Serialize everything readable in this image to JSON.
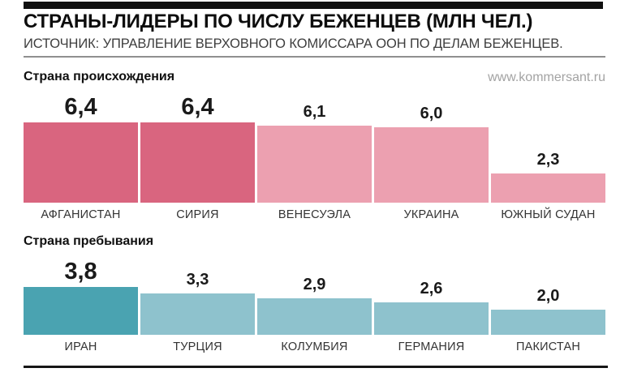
{
  "header": {
    "title": "СТРАНЫ-ЛИДЕРЫ ПО ЧИСЛУ БЕЖЕНЦЕВ (МЛН ЧЕЛ.)",
    "source": "ИСТОЧНИК: УПРАВЛЕНИЕ ВЕРХОВНОГО КОМИССАРА ООН ПО ДЕЛАМ БЕЖЕНЦЕВ.",
    "website": "www.kommersant.ru"
  },
  "chart_data": [
    {
      "type": "bar",
      "title": "Страна происхождения",
      "units": "млн чел.",
      "categories": [
        "АФГАНИСТАН",
        "СИРИЯ",
        "ВЕНЕСУЭЛА",
        "УКРАИНА",
        "ЮЖНЫЙ СУДАН"
      ],
      "values": [
        6.4,
        6.4,
        6.1,
        6.0,
        2.3
      ],
      "value_labels": [
        "6,4",
        "6,4",
        "6,1",
        "6,0",
        "2,3"
      ],
      "emphasis": [
        true,
        true,
        false,
        false,
        false
      ],
      "colors": {
        "emphasis": "#d9657f",
        "normal": "#eca0b0"
      },
      "ylim": [
        0,
        6.4
      ],
      "grid": false,
      "legend": false
    },
    {
      "type": "bar",
      "title": "Страна пребывания",
      "units": "млн чел.",
      "categories": [
        "ИРАН",
        "ТУРЦИЯ",
        "КОЛУМБИЯ",
        "ГЕРМАНИЯ",
        "ПАКИСТАН"
      ],
      "values": [
        3.8,
        3.3,
        2.9,
        2.6,
        2.0
      ],
      "value_labels": [
        "3,8",
        "3,3",
        "2,9",
        "2,6",
        "2,0"
      ],
      "emphasis": [
        true,
        false,
        false,
        false,
        false
      ],
      "colors": {
        "emphasis": "#4aa3b1",
        "normal": "#8ec2cd"
      },
      "ylim": [
        0,
        6.4
      ],
      "grid": false,
      "legend": false
    }
  ]
}
